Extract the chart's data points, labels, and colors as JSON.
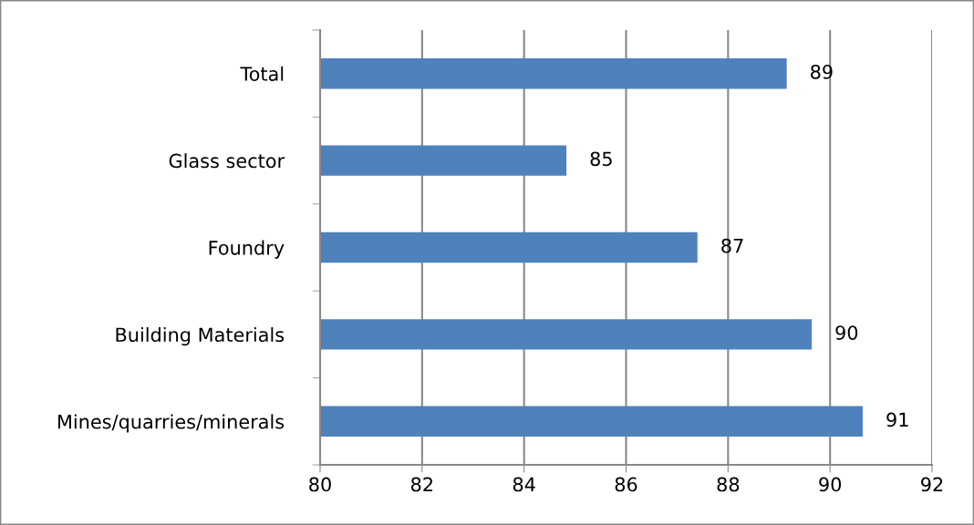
{
  "chart_data": {
    "type": "bar",
    "orientation": "horizontal",
    "categories": [
      "Total",
      "Glass sector",
      "Foundry",
      "Building Materials",
      "Mines/quarries/minerals"
    ],
    "values": [
      89.15,
      84.83,
      87.4,
      89.64,
      90.64
    ],
    "value_labels": [
      "89",
      "85",
      "87",
      "90",
      "91"
    ],
    "color": "#4f81bd",
    "xlim": [
      80,
      92
    ],
    "xticks": [
      80,
      82,
      84,
      86,
      88,
      90,
      92
    ],
    "grid": "x"
  }
}
